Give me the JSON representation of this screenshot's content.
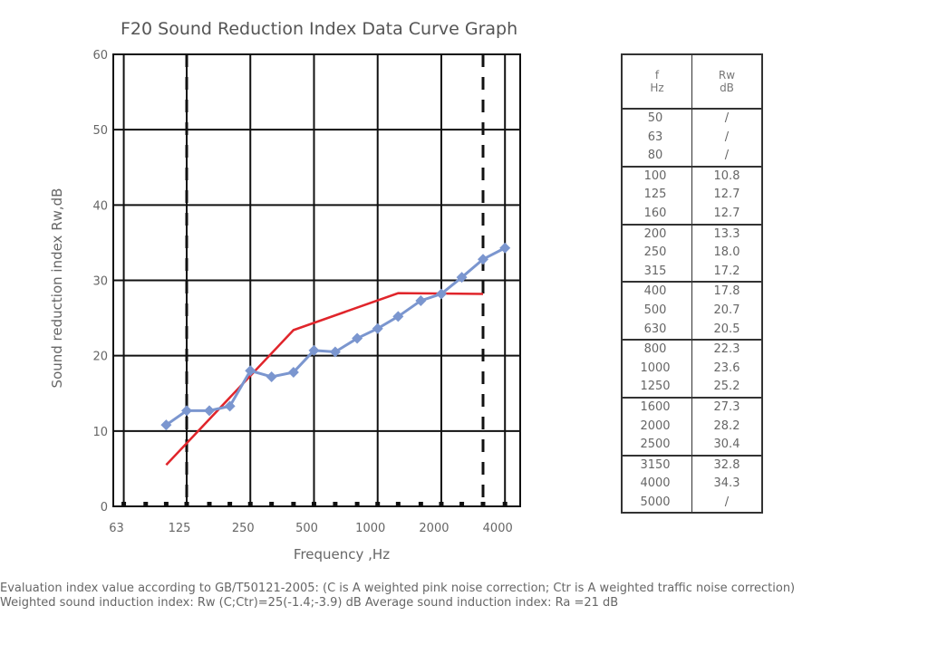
{
  "chart_data": {
    "type": "line",
    "title": "F20 Sound Reduction Index Data Curve Graph",
    "xlabel": "Frequency  ,Hz",
    "ylabel": "Sound reduction index Rw,dB",
    "ylim": [
      0,
      60
    ],
    "yticks": [
      0,
      10,
      20,
      30,
      40,
      50,
      60
    ],
    "x_scale": "log (one-third octave bands)",
    "xtick_labels": [
      "63",
      "125",
      "250",
      "500",
      "1000",
      "2000",
      "4000"
    ],
    "x": [
      100,
      125,
      160,
      200,
      250,
      315,
      400,
      500,
      630,
      800,
      1000,
      1250,
      1600,
      2000,
      2500,
      3150,
      4000
    ],
    "grid": true,
    "series": [
      {
        "color": "#7b96cf",
        "marker": "diamond",
        "x": [
          100,
          125,
          160,
          200,
          250,
          315,
          400,
          500,
          630,
          800,
          1000,
          1250,
          1600,
          2000,
          2500,
          3150,
          4000
        ],
        "values": [
          10.8,
          12.7,
          12.7,
          13.3,
          18.0,
          17.2,
          17.8,
          20.7,
          20.5,
          22.3,
          23.6,
          25.2,
          27.3,
          28.2,
          30.4,
          32.8,
          34.3
        ]
      },
      {
        "color": "#e0252b",
        "marker": "none",
        "x": [
          100,
          400,
          1250,
          3150
        ],
        "values": [
          5.5,
          23.4,
          28.3,
          28.2
        ]
      }
    ],
    "dashed_vertical_lines_at": [
      125,
      3150
    ]
  },
  "table": {
    "header": {
      "f": "f",
      "f_unit": "Hz",
      "rw": "Rw",
      "rw_unit": "dB"
    },
    "groups": [
      {
        "f": [
          "50",
          "63",
          "80"
        ],
        "rw": [
          "/",
          "/",
          "/"
        ]
      },
      {
        "f": [
          "100",
          "125",
          "160"
        ],
        "rw": [
          "10.8",
          "12.7",
          "12.7"
        ]
      },
      {
        "f": [
          "200",
          "250",
          "315"
        ],
        "rw": [
          "13.3",
          "18.0",
          "17.2"
        ]
      },
      {
        "f": [
          "400",
          "500",
          "630"
        ],
        "rw": [
          "17.8",
          "20.7",
          "20.5"
        ]
      },
      {
        "f": [
          "800",
          "1000",
          "1250"
        ],
        "rw": [
          "22.3",
          "23.6",
          "25.2"
        ]
      },
      {
        "f": [
          "1600",
          "2000",
          "2500"
        ],
        "rw": [
          "27.3",
          "28.2",
          "30.4"
        ]
      },
      {
        "f": [
          "3150",
          "4000",
          "5000"
        ],
        "rw": [
          "32.8",
          "34.3",
          "/"
        ]
      }
    ]
  },
  "notes": {
    "line1": "Evaluation index value according to GB/T50121-2005: (C is A weighted pink noise correction; Ctr is A weighted traffic noise correction)",
    "line2": "Weighted sound induction index: Rw (C;Ctr)=25(-1.4;-3.9) dB   Average sound induction index: Ra =21 dB"
  },
  "colors": {
    "grid": "#111111",
    "measured": "#7b96cf",
    "reference": "#e0252b"
  }
}
